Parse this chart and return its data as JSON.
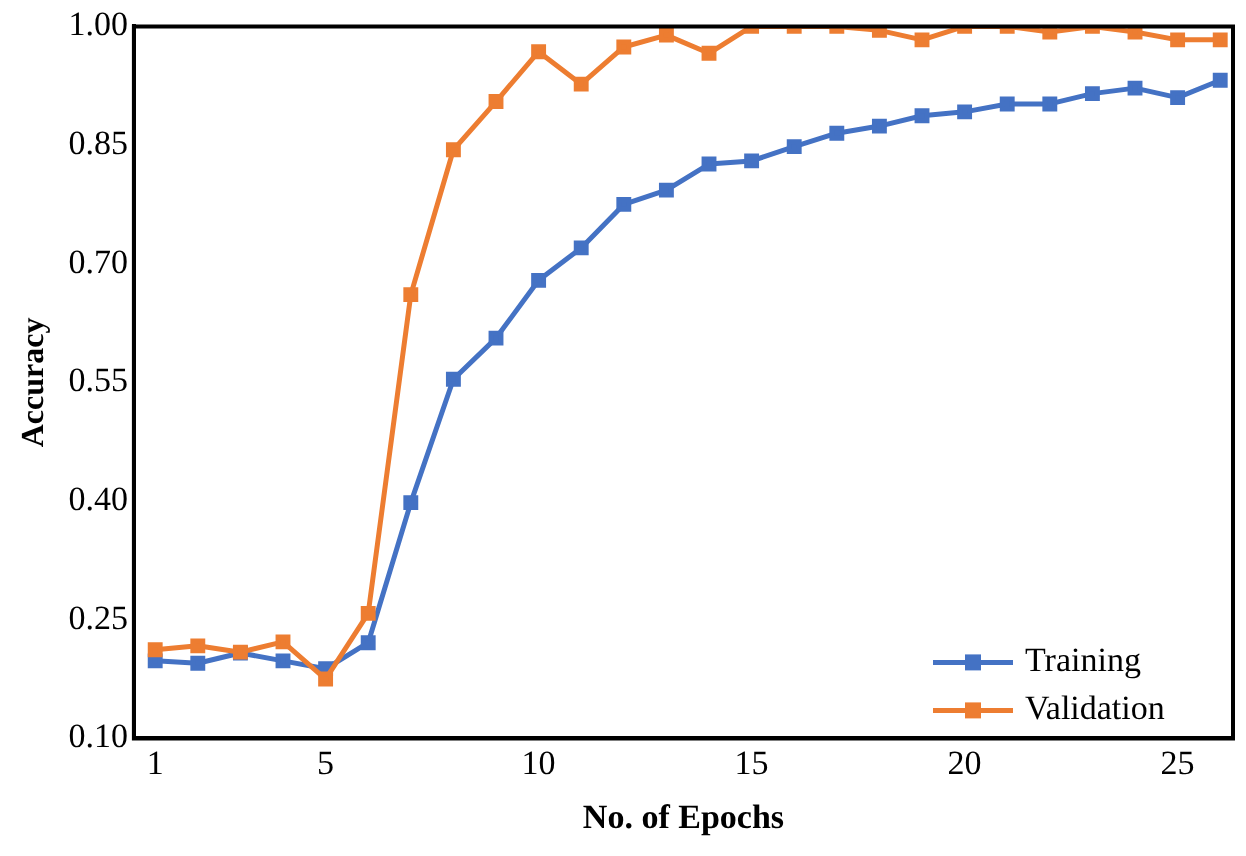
{
  "chart_data": {
    "type": "line",
    "xlabel": "No. of Epochs",
    "ylabel": "Accuracy",
    "x": [
      1,
      2,
      3,
      4,
      5,
      6,
      7,
      8,
      9,
      10,
      11,
      12,
      13,
      14,
      15,
      16,
      17,
      18,
      19,
      20,
      21,
      22,
      23,
      24,
      25,
      26
    ],
    "series": [
      {
        "name": "Training",
        "color": "#4472c4",
        "values": [
          0.198,
          0.195,
          0.208,
          0.198,
          0.188,
          0.221,
          0.398,
          0.554,
          0.606,
          0.679,
          0.72,
          0.775,
          0.793,
          0.826,
          0.83,
          0.848,
          0.865,
          0.874,
          0.887,
          0.892,
          0.902,
          0.902,
          0.915,
          0.922,
          0.91,
          0.932
        ]
      },
      {
        "name": "Validation",
        "color": "#ed7d31",
        "values": [
          0.212,
          0.217,
          0.209,
          0.222,
          0.175,
          0.258,
          0.661,
          0.844,
          0.905,
          0.968,
          0.927,
          0.974,
          0.989,
          0.966,
          1.0,
          1.0,
          1.0,
          0.995,
          0.983,
          1.0,
          1.0,
          0.993,
          1.0,
          0.993,
          0.983,
          0.983
        ]
      }
    ],
    "xlim": [
      0.5,
      26.3
    ],
    "xticks": [
      1,
      5,
      10,
      15,
      20,
      25
    ],
    "ylim": [
      0.1,
      1.0
    ],
    "yticks": [
      {
        "value": 0.1,
        "label": "0.10"
      },
      {
        "value": 0.25,
        "label": "0.25"
      },
      {
        "value": 0.4,
        "label": "0.40"
      },
      {
        "value": 0.55,
        "label": "0.55"
      },
      {
        "value": 0.7,
        "label": "0.70"
      },
      {
        "value": 0.85,
        "label": "0.85"
      },
      {
        "value": 1.0,
        "label": "1.00"
      }
    ],
    "grid": false,
    "legend": "bottom right",
    "marker": "square",
    "line_style": "solid"
  }
}
